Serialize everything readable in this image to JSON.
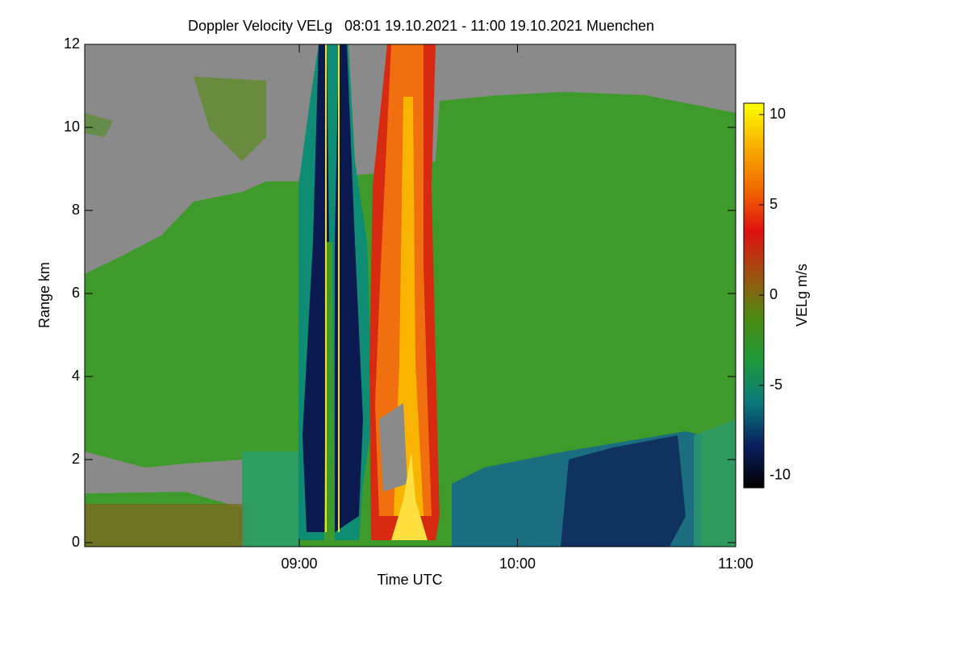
{
  "chart_data": {
    "type": "heatmap",
    "title": "Doppler Velocity VELg   08:01 19.10.2021 - 11:00 19.10.2021 Muenchen",
    "xlabel": "Time UTC",
    "ylabel": "Range km",
    "xlim": [
      8.0167,
      11.0
    ],
    "xticks": [
      {
        "value": 9,
        "label": "09:00"
      },
      {
        "value": 10,
        "label": "10:00"
      },
      {
        "value": 11,
        "label": "11:00"
      }
    ],
    "ylim": [
      0,
      12
    ],
    "yticks": [
      0,
      2,
      4,
      6,
      8,
      10,
      12
    ],
    "colorbar": {
      "label": "VELg m/s",
      "lim": [
        -10.67,
        10.63
      ],
      "ticks": [
        10,
        5,
        0,
        -5,
        -10
      ],
      "colors": [
        "#000000",
        "#0a2060",
        "#0a7a7a",
        "#1f9a3a",
        "#4e8a10",
        "#a05010",
        "#e01010",
        "#f06a00",
        "#f8b000",
        "#ffff00"
      ]
    }
  }
}
